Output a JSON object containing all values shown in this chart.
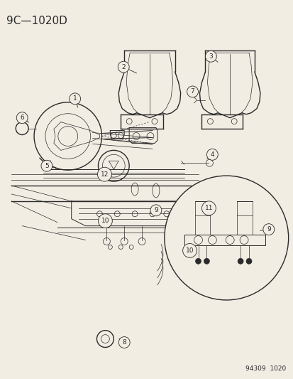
{
  "title": "9C—1020D",
  "background_color": "#f2ede3",
  "watermark": "94309  1020",
  "line_color": "#2a2a2a",
  "callout_color": "#2a2a2a",
  "font_size_title": 11,
  "font_size_callout": 6.5,
  "font_size_watermark": 6.5
}
